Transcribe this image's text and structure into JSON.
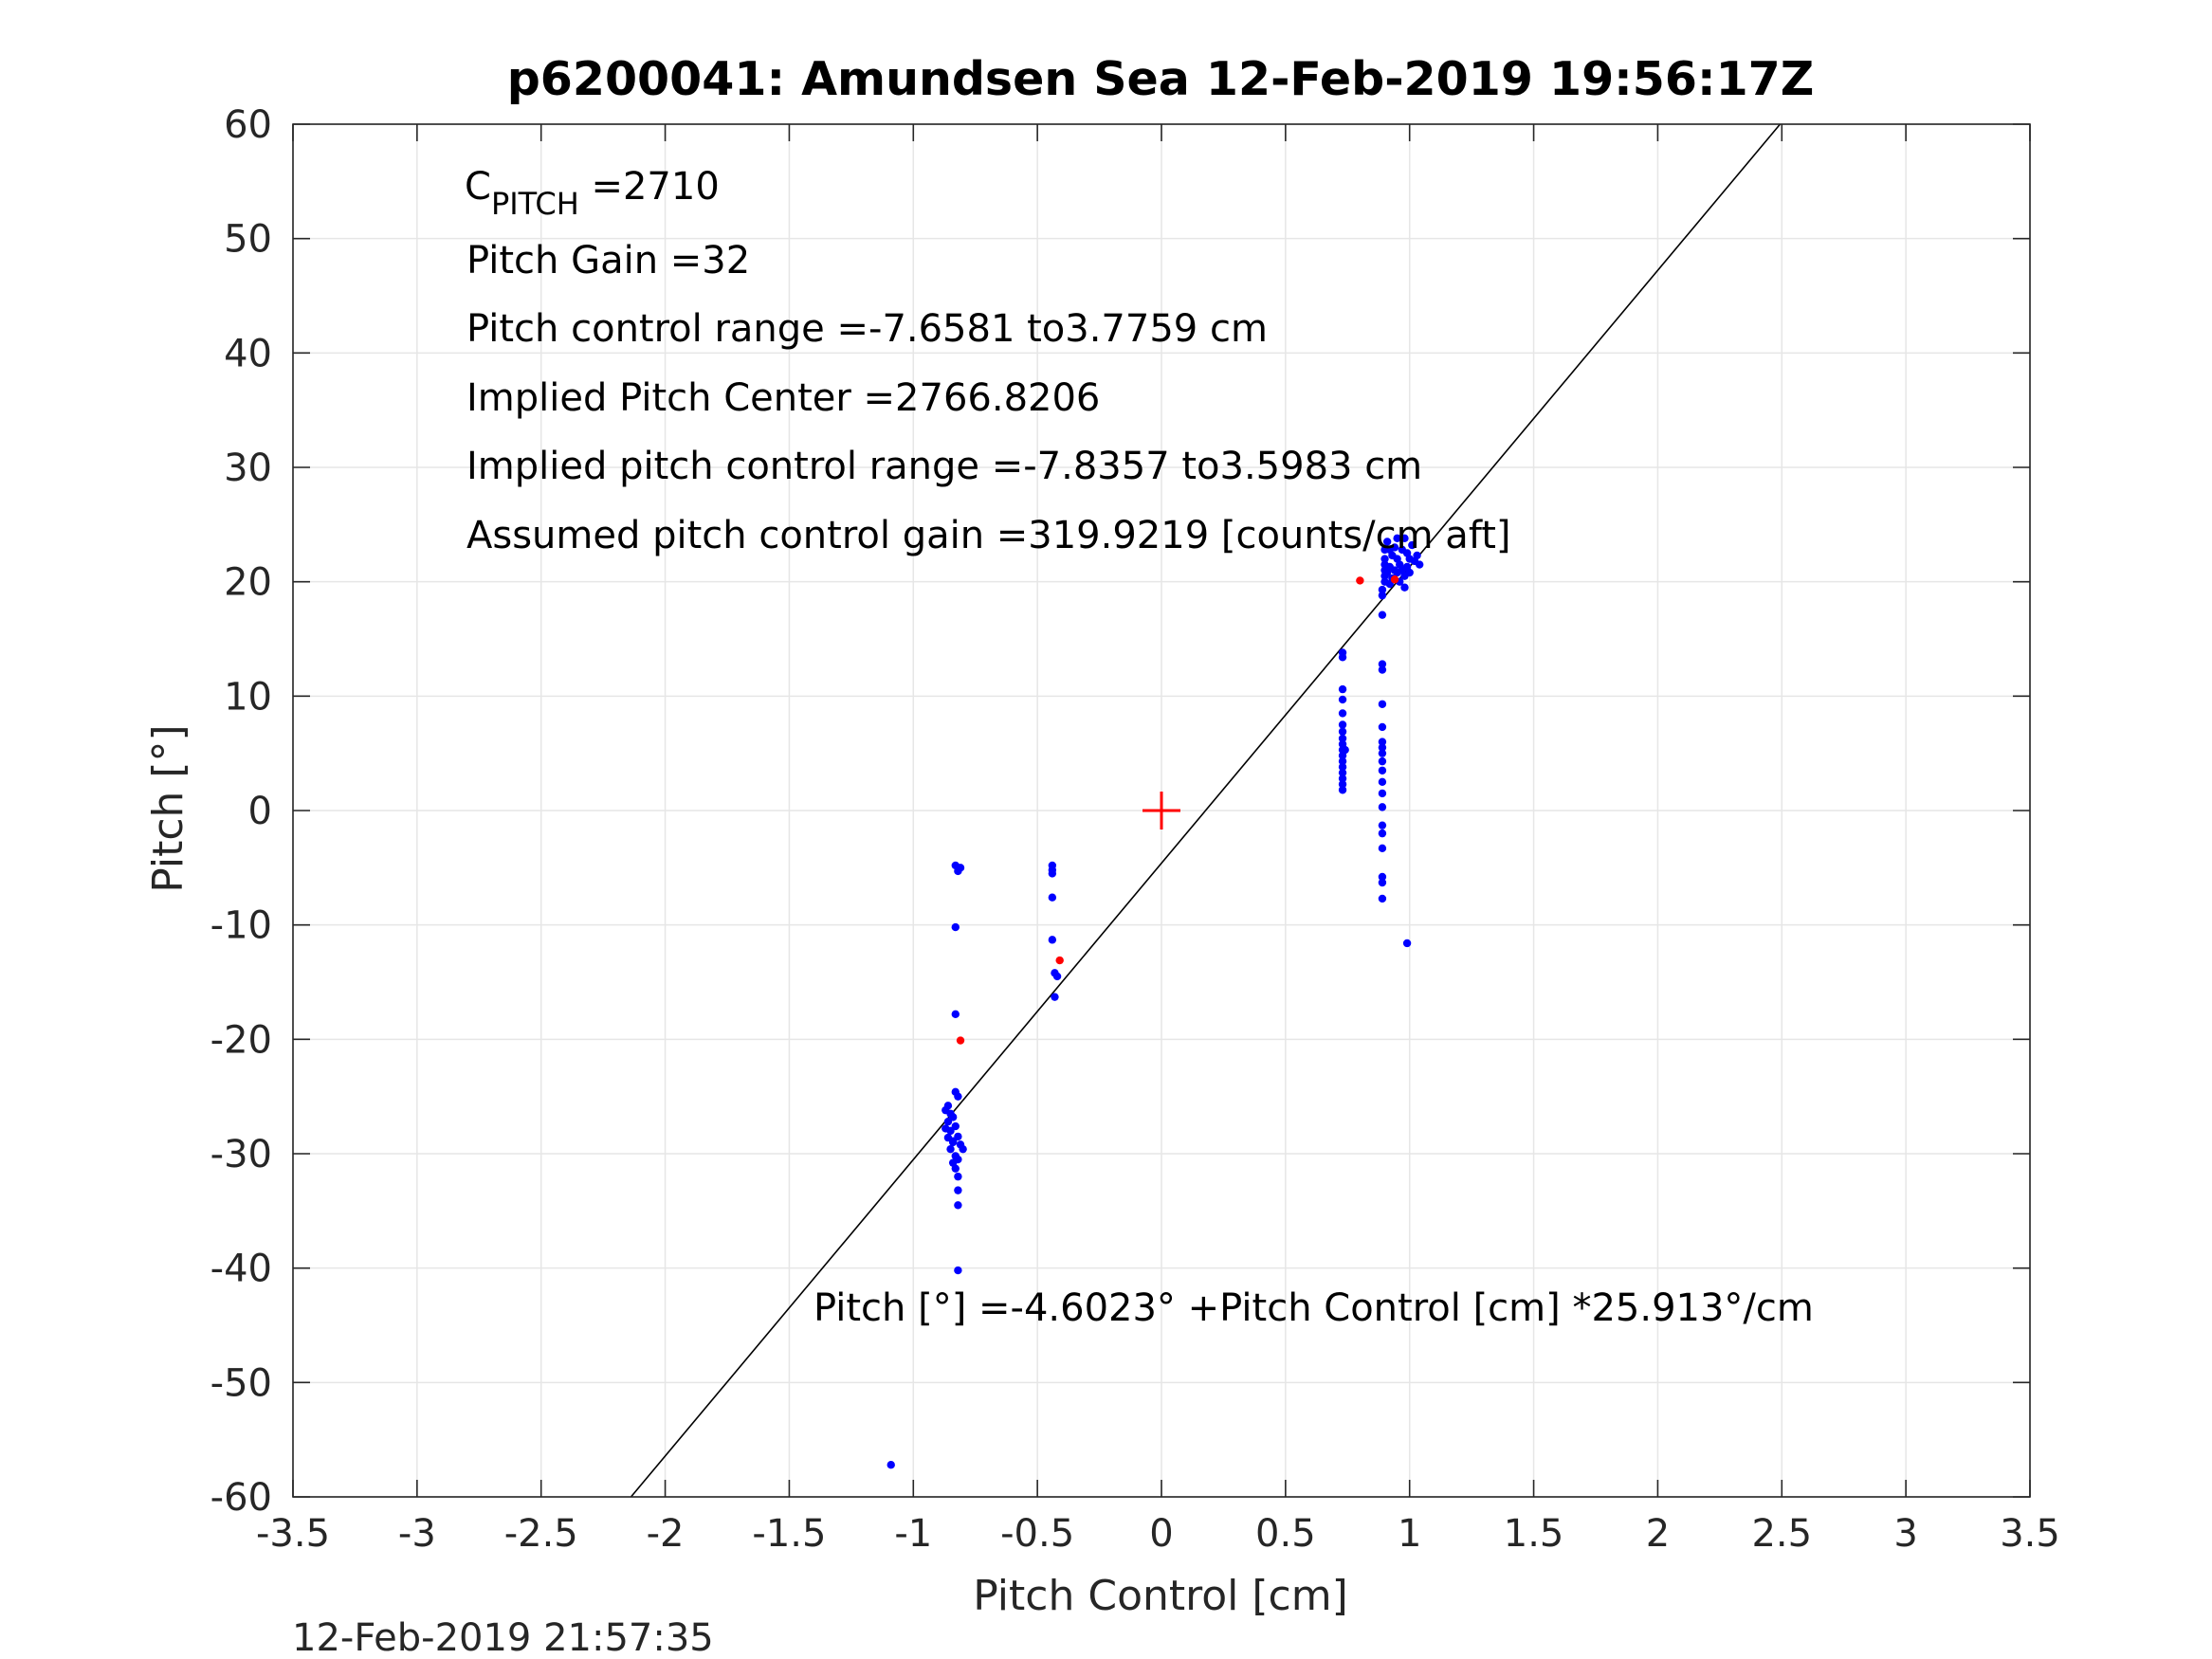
{
  "chart_data": {
    "type": "scatter",
    "title": "p6200041: Amundsen Sea 12-Feb-2019 19:56:17Z",
    "xlabel": "Pitch Control [cm]",
    "ylabel": "Pitch [°]",
    "xlim": [
      -3.5,
      3.5
    ],
    "ylim": [
      -60,
      60
    ],
    "x_ticks": [
      -3.5,
      -3,
      -2.5,
      -2,
      -1.5,
      -1,
      -0.5,
      0,
      0.5,
      1,
      1.5,
      2,
      2.5,
      3,
      3.5
    ],
    "y_ticks": [
      -60,
      -50,
      -40,
      -30,
      -20,
      -10,
      0,
      10,
      20,
      30,
      40,
      50,
      60
    ],
    "grid": true,
    "colors": {
      "data": "#0000ff",
      "highlight": "#ff0000",
      "fit": "#000000",
      "grid": "#e6e6e6",
      "axes": "#262626"
    },
    "annotations": {
      "c_pitch_main": "C",
      "c_pitch_sub": "PITCH",
      "c_pitch_value": " =2710",
      "pitch_gain": "Pitch Gain =32",
      "pitch_control_range": "Pitch control range =-7.6581 to3.7759 cm",
      "implied_pitch_center": "Implied Pitch Center =2766.8206",
      "implied_pitch_control_range": "Implied pitch control range =-7.8357 to3.5983 cm",
      "assumed_gain": "Assumed pitch control gain =319.9219 [counts/cm aft]",
      "fit_equation": "Pitch [°] =-4.6023° +Pitch Control [cm] *25.913°/cm"
    },
    "timestamp": "12-Feb-2019 21:57:35",
    "fit_line": {
      "intercept": -4.6023,
      "slope": 25.913
    },
    "center_marker": {
      "x": 0,
      "y": 0
    },
    "series": [
      {
        "marker": "dot",
        "color": "#0000ff",
        "points": [
          [
            -1.09,
            -57.2
          ],
          [
            -0.82,
            -40.2
          ],
          [
            -0.82,
            -34.5
          ],
          [
            -0.82,
            -33.2
          ],
          [
            -0.82,
            -32.0
          ],
          [
            -0.82,
            -30.5
          ],
          [
            -0.84,
            -29.0
          ],
          [
            -0.85,
            -28.0
          ],
          [
            -0.86,
            -27.2
          ],
          [
            -0.87,
            -26.2
          ],
          [
            -0.86,
            -25.8
          ],
          [
            -0.84,
            -26.8
          ],
          [
            -0.83,
            -27.6
          ],
          [
            -0.82,
            -28.5
          ],
          [
            -0.81,
            -29.2
          ],
          [
            -0.8,
            -29.6
          ],
          [
            -0.83,
            -30.2
          ],
          [
            -0.84,
            -30.8
          ],
          [
            -0.83,
            -31.3
          ],
          [
            -0.82,
            -25.0
          ],
          [
            -0.83,
            -24.6
          ],
          [
            -0.85,
            -29.6
          ],
          [
            -0.86,
            -28.6
          ],
          [
            -0.87,
            -27.8
          ],
          [
            -0.85,
            -26.5
          ],
          [
            -0.84,
            -28.9
          ],
          [
            -0.83,
            -17.8
          ],
          [
            -0.83,
            -10.2
          ],
          [
            -0.81,
            -5.0
          ],
          [
            -0.83,
            -4.8
          ],
          [
            -0.82,
            -5.3
          ],
          [
            -0.44,
            -4.8
          ],
          [
            -0.44,
            -5.2
          ],
          [
            -0.44,
            -5.5
          ],
          [
            -0.44,
            -7.6
          ],
          [
            -0.44,
            -11.3
          ],
          [
            -0.43,
            -14.2
          ],
          [
            -0.42,
            -14.5
          ],
          [
            -0.43,
            -16.3
          ],
          [
            0.73,
            1.8
          ],
          [
            0.73,
            2.3
          ],
          [
            0.73,
            2.8
          ],
          [
            0.73,
            3.3
          ],
          [
            0.73,
            3.8
          ],
          [
            0.73,
            4.3
          ],
          [
            0.73,
            4.8
          ],
          [
            0.73,
            5.3
          ],
          [
            0.73,
            5.8
          ],
          [
            0.73,
            6.3
          ],
          [
            0.73,
            6.9
          ],
          [
            0.73,
            7.5
          ],
          [
            0.73,
            8.5
          ],
          [
            0.73,
            9.7
          ],
          [
            0.73,
            10.6
          ],
          [
            0.73,
            13.4
          ],
          [
            0.73,
            13.8
          ],
          [
            0.74,
            5.3
          ],
          [
            0.89,
            12.3
          ],
          [
            0.89,
            12.8
          ],
          [
            0.89,
            9.3
          ],
          [
            0.89,
            7.3
          ],
          [
            0.89,
            6.0
          ],
          [
            0.89,
            5.5
          ],
          [
            0.89,
            5.0
          ],
          [
            0.89,
            4.3
          ],
          [
            0.89,
            3.5
          ],
          [
            0.89,
            2.5
          ],
          [
            0.89,
            1.5
          ],
          [
            0.89,
            0.3
          ],
          [
            0.89,
            -1.3
          ],
          [
            0.89,
            -2.0
          ],
          [
            0.89,
            -3.3
          ],
          [
            0.89,
            -5.8
          ],
          [
            0.89,
            -6.3
          ],
          [
            0.89,
            -7.7
          ],
          [
            0.99,
            -11.6
          ],
          [
            0.89,
            17.1
          ],
          [
            0.89,
            18.8
          ],
          [
            0.89,
            19.3
          ],
          [
            0.9,
            20.0
          ],
          [
            0.9,
            20.5
          ],
          [
            0.9,
            21.0
          ],
          [
            0.9,
            21.5
          ],
          [
            0.9,
            22.0
          ],
          [
            0.9,
            22.8
          ],
          [
            0.91,
            23.5
          ],
          [
            0.92,
            19.8
          ],
          [
            0.92,
            21.3
          ],
          [
            0.93,
            20.3
          ],
          [
            0.93,
            22.3
          ],
          [
            0.94,
            21.0
          ],
          [
            0.95,
            20.8
          ],
          [
            0.95,
            22.0
          ],
          [
            0.96,
            21.5
          ],
          [
            0.96,
            20.0
          ],
          [
            0.97,
            22.8
          ],
          [
            0.97,
            21.0
          ],
          [
            0.98,
            23.8
          ],
          [
            0.98,
            20.5
          ],
          [
            0.98,
            19.5
          ],
          [
            0.99,
            22.5
          ],
          [
            0.99,
            21.3
          ],
          [
            1.0,
            20.8
          ],
          [
            1.0,
            22.0
          ],
          [
            1.01,
            23.2
          ],
          [
            1.02,
            21.8
          ],
          [
            1.03,
            22.3
          ],
          [
            1.04,
            21.5
          ],
          [
            0.94,
            23.0
          ],
          [
            0.91,
            20.8
          ],
          [
            0.92,
            22.8
          ],
          [
            0.95,
            23.8
          ]
        ]
      },
      {
        "marker": "dot",
        "color": "#ff0000",
        "points": [
          [
            -0.81,
            -20.1
          ],
          [
            -0.41,
            -13.1
          ],
          [
            0.8,
            20.1
          ],
          [
            0.94,
            20.2
          ]
        ]
      }
    ]
  }
}
